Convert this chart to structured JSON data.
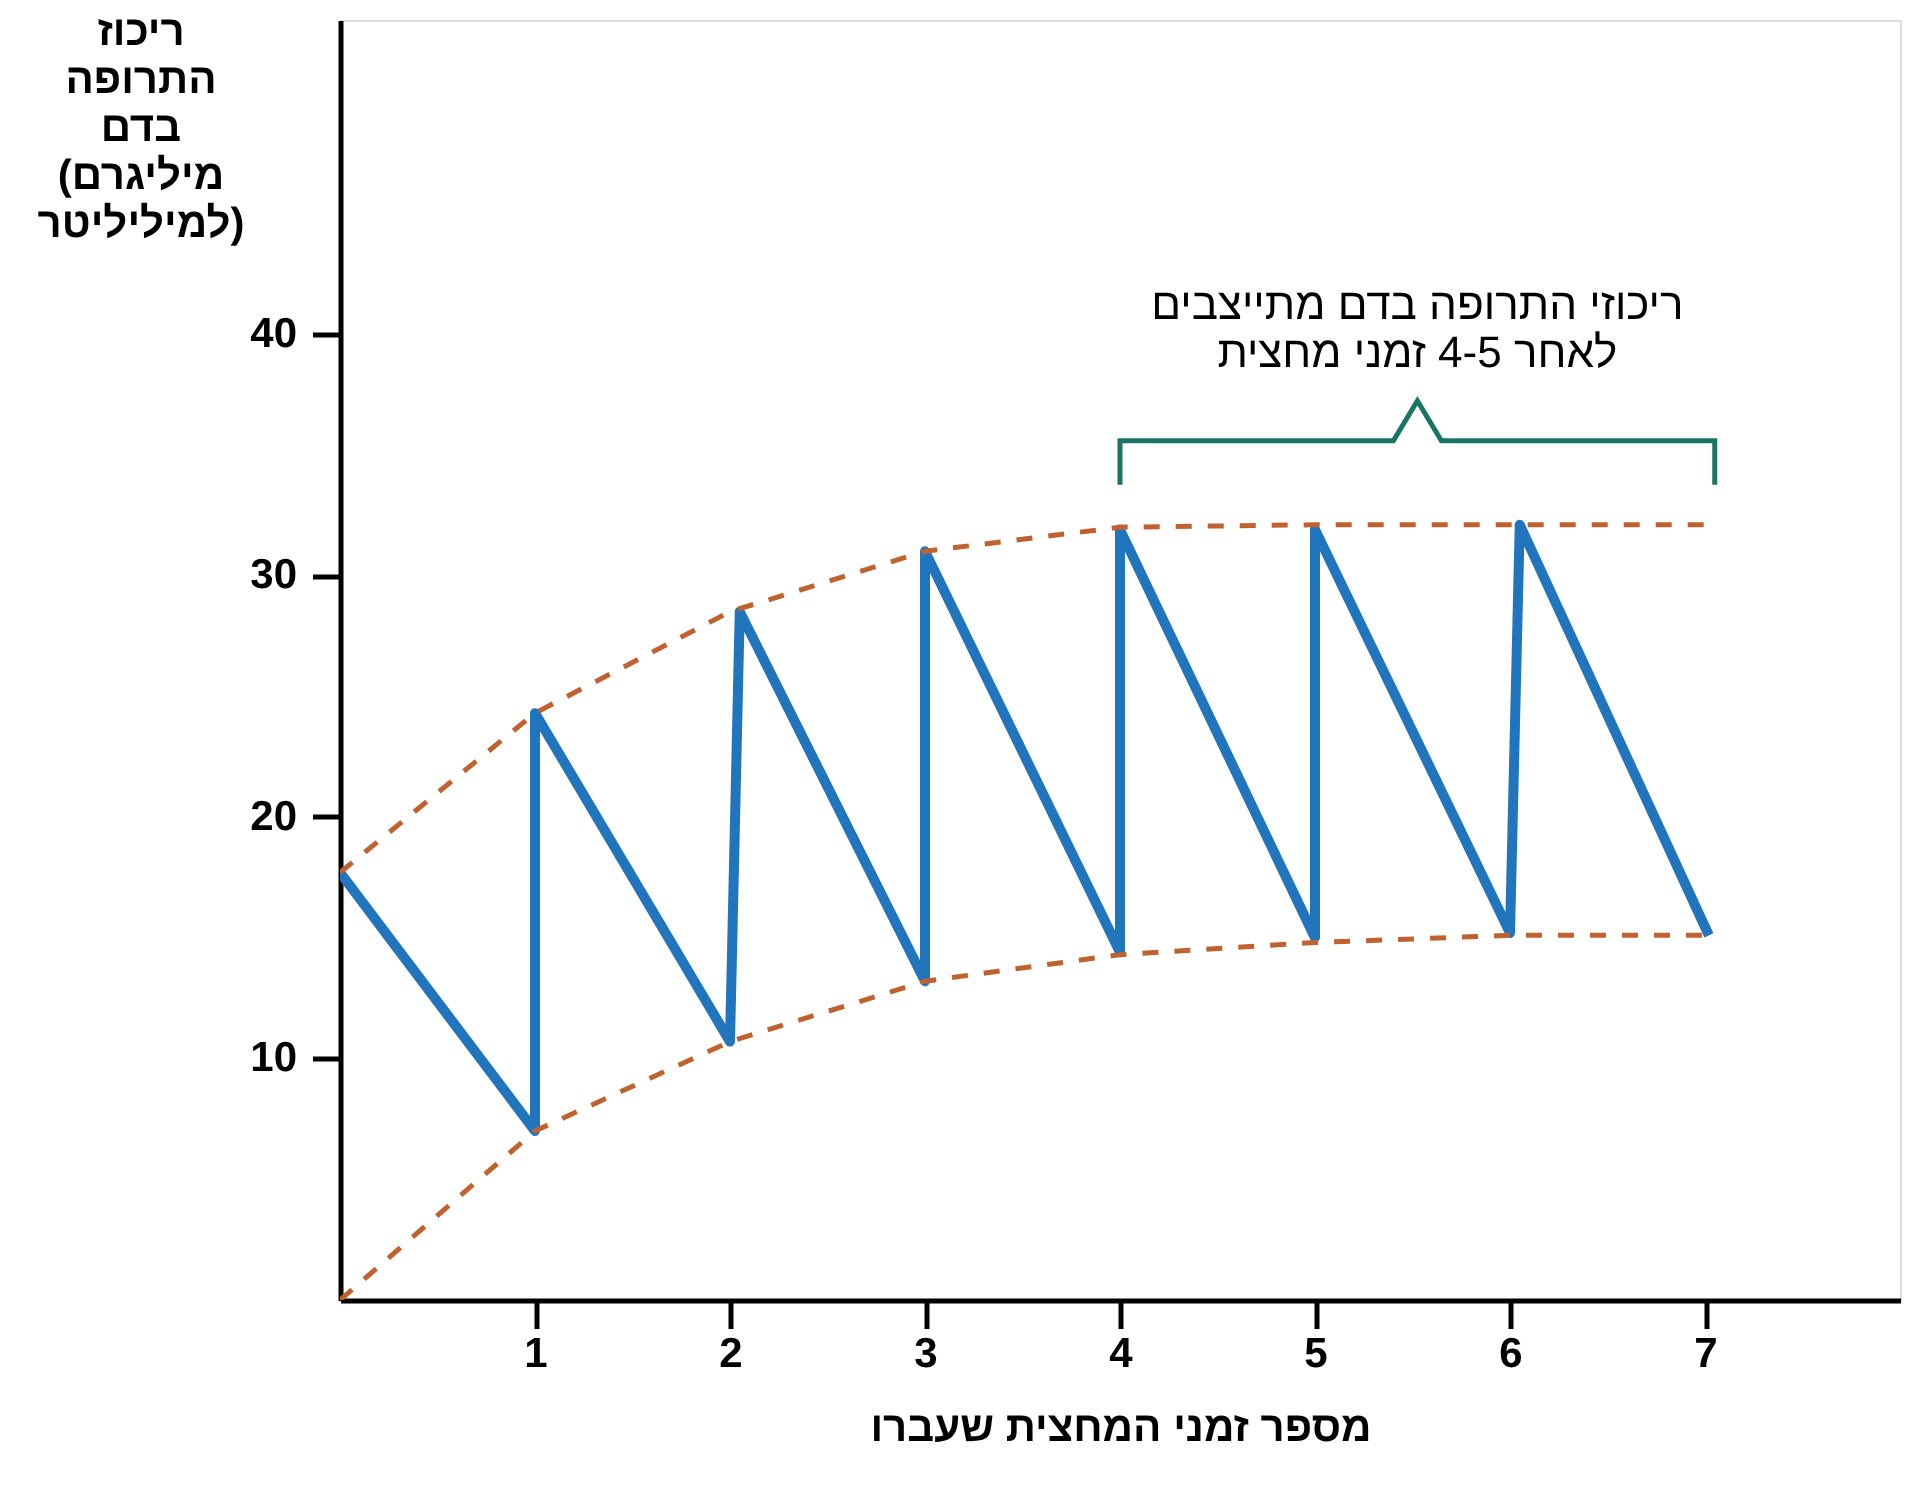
{
  "chart_data": {
    "type": "line",
    "ylabel": "ריכוז התרופה בדם (מיליגרם למיליליטר)",
    "xlabel": "מספר זמני המחצית שעברו",
    "annotations": [
      "ריכוזי התרופה בדם מתייצבים\nלאחר 4-5 זמני מחצית"
    ],
    "series": [
      {
        "color": "#2075bd",
        "line_style": "solid",
        "x": [
          0,
          1,
          1,
          2,
          2.05,
          3,
          3,
          4,
          4,
          5,
          5,
          6,
          6.05,
          7.02
        ],
        "values": [
          17.7,
          7,
          24.3,
          10.7,
          28.5,
          13.2,
          31,
          14.4,
          31.9,
          15,
          31.9,
          15.2,
          32.1,
          15.1
        ]
      },
      {
        "color": "#c0622f",
        "line_style": "dashed",
        "x": [
          0,
          1,
          2,
          3,
          4,
          5,
          6,
          7
        ],
        "values": [
          17.7,
          24.3,
          28.5,
          31,
          32,
          32.1,
          32.1,
          32.1
        ]
      },
      {
        "color": "#c0622f",
        "line_style": "dashed",
        "x": [
          0,
          1,
          2,
          3,
          4,
          5,
          6,
          7
        ],
        "values": [
          0,
          7,
          10.7,
          13.2,
          14.3,
          14.8,
          15.1,
          15.1
        ]
      }
    ],
    "xlim": [
      0,
      8
    ],
    "ylim": [
      0,
      53
    ],
    "xticks": [
      1,
      2,
      3,
      4,
      5,
      6,
      7
    ],
    "yticks": [
      10,
      20,
      30,
      40
    ],
    "grid": false,
    "marker": "none"
  }
}
